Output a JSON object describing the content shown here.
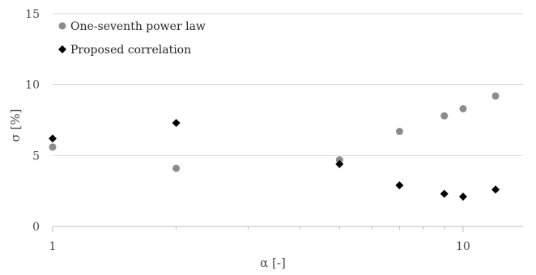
{
  "chart_data": {
    "type": "scatter",
    "xlabel": "α [-]",
    "ylabel": "σ [%]",
    "x_scale": "log",
    "xlim": [
      1,
      14
    ],
    "ylim": [
      0,
      15
    ],
    "x_ticks": [
      {
        "value": 1,
        "label": "1"
      },
      {
        "value": 10,
        "label": "10"
      }
    ],
    "y_ticks": [
      {
        "value": 0,
        "label": "0"
      },
      {
        "value": 5,
        "label": "5"
      },
      {
        "value": 10,
        "label": "10"
      },
      {
        "value": 15,
        "label": "15"
      }
    ],
    "grid": "horizontal",
    "legend_position": "top-left",
    "series": [
      {
        "name": "One-seventh power law",
        "marker": "circle",
        "color": "#8c8c8c",
        "points": [
          {
            "x": 1.0,
            "y": 5.6
          },
          {
            "x": 2.0,
            "y": 4.1
          },
          {
            "x": 5.0,
            "y": 4.7
          },
          {
            "x": 7.0,
            "y": 6.7
          },
          {
            "x": 9.0,
            "y": 7.8
          },
          {
            "x": 10.0,
            "y": 8.3
          },
          {
            "x": 12.0,
            "y": 9.2
          }
        ]
      },
      {
        "name": "Proposed correlation",
        "marker": "diamond",
        "color": "#000000",
        "points": [
          {
            "x": 1.0,
            "y": 6.2
          },
          {
            "x": 2.0,
            "y": 7.3
          },
          {
            "x": 5.0,
            "y": 4.4
          },
          {
            "x": 7.0,
            "y": 2.9
          },
          {
            "x": 9.0,
            "y": 2.3
          },
          {
            "x": 10.0,
            "y": 2.1
          },
          {
            "x": 12.0,
            "y": 2.6
          }
        ]
      }
    ]
  }
}
